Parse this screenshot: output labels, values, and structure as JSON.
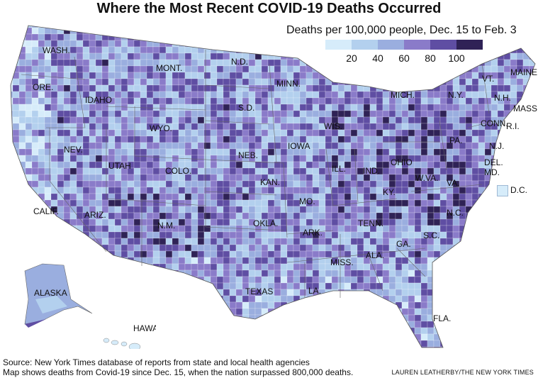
{
  "title": "Where the Most Recent COVID-19 Deaths Occurred",
  "legend": {
    "title": "Deaths per 100,000 people, Dec. 15 to Feb. 3",
    "ticks": [
      "20",
      "40",
      "60",
      "80",
      "100"
    ],
    "colors": [
      "#d6ecfa",
      "#b3d0ee",
      "#9aaedf",
      "#8a7bc9",
      "#5f4ea3",
      "#2f2256"
    ]
  },
  "states": [
    {
      "label": "WASH."
    },
    {
      "label": "ORE."
    },
    {
      "label": "IDAHO"
    },
    {
      "label": "MONT."
    },
    {
      "label": "N.D."
    },
    {
      "label": "MINN."
    },
    {
      "label": "S.D."
    },
    {
      "label": "WYO."
    },
    {
      "label": "NEV."
    },
    {
      "label": "UTAH"
    },
    {
      "label": "COLO."
    },
    {
      "label": "NEB."
    },
    {
      "label": "IOWA"
    },
    {
      "label": "WIS."
    },
    {
      "label": "MICH."
    },
    {
      "label": "CALIF."
    },
    {
      "label": "KAN."
    },
    {
      "label": "MO."
    },
    {
      "label": "ILL."
    },
    {
      "label": "IND."
    },
    {
      "label": "OHIO"
    },
    {
      "label": "PA."
    },
    {
      "label": "N.Y."
    },
    {
      "label": "VT."
    },
    {
      "label": "N.H."
    },
    {
      "label": "MAINE"
    },
    {
      "label": "MASS."
    },
    {
      "label": "CONN."
    },
    {
      "label": "R.I."
    },
    {
      "label": "N.J."
    },
    {
      "label": "DEL."
    },
    {
      "label": "MD."
    },
    {
      "label": "W.VA."
    },
    {
      "label": "VA."
    },
    {
      "label": "KY."
    },
    {
      "label": "ARIZ."
    },
    {
      "label": "N.M."
    },
    {
      "label": "OKLA."
    },
    {
      "label": "ARK."
    },
    {
      "label": "TENN."
    },
    {
      "label": "N.C."
    },
    {
      "label": "S.C."
    },
    {
      "label": "GA."
    },
    {
      "label": "ALA."
    },
    {
      "label": "MISS."
    },
    {
      "label": "LA."
    },
    {
      "label": "TEXAS"
    },
    {
      "label": "FLA."
    },
    {
      "label": "ALASKA"
    },
    {
      "label": "HAWAII"
    }
  ],
  "dc": {
    "label": "D.C."
  },
  "source_line1": "Source: New York Times database of reports from state and local health agencies",
  "source_line2": "Map shows deaths from Covid-19 since Dec. 15, when the nation surpassed 800,000 deaths.",
  "credit": "LAUREN LEATHERBY/THE NEW YORK TIMES"
}
